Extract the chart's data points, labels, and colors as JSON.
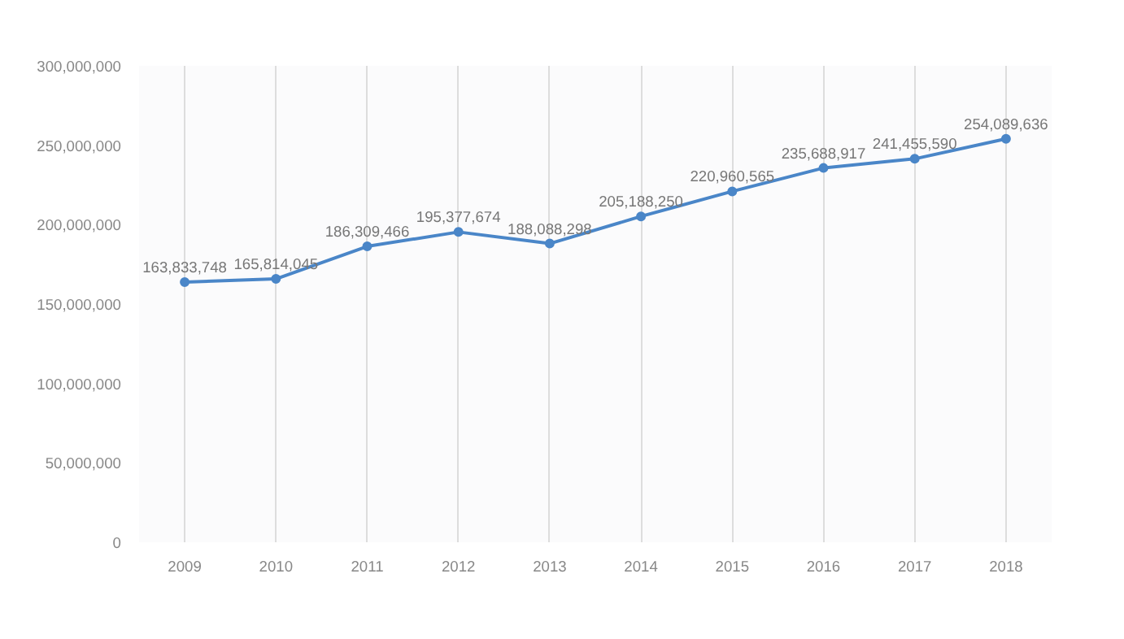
{
  "chart_data": {
    "type": "line",
    "categories": [
      "2009",
      "2010",
      "2011",
      "2012",
      "2013",
      "2014",
      "2015",
      "2016",
      "2017",
      "2018"
    ],
    "series": [
      {
        "color": "#4a86c8",
        "values": [
          163833748,
          165814045,
          186309466,
          195377674,
          188088298,
          205188250,
          220960565,
          235688917,
          241455590,
          254089636
        ],
        "value_labels": [
          "163,833,748",
          "165,814,045",
          "186,309,466",
          "195,377,674",
          "188,088,298",
          "205,188,250",
          "220,960,565",
          "235,688,917",
          "241,455,590",
          "254,089,636"
        ]
      }
    ],
    "ylim": [
      0,
      300000000
    ],
    "yticks": [
      {
        "value": 0,
        "label": "0"
      },
      {
        "value": 50000000,
        "label": "50,000,000"
      },
      {
        "value": 100000000,
        "label": "100,000,000"
      },
      {
        "value": 150000000,
        "label": "150,000,000"
      },
      {
        "value": 200000000,
        "label": "200,000,000"
      },
      {
        "value": 250000000,
        "label": "250,000,000"
      },
      {
        "value": 300000000,
        "label": "300,000,000"
      }
    ],
    "grid": "x",
    "marker": "circle",
    "line_style": "solid"
  }
}
